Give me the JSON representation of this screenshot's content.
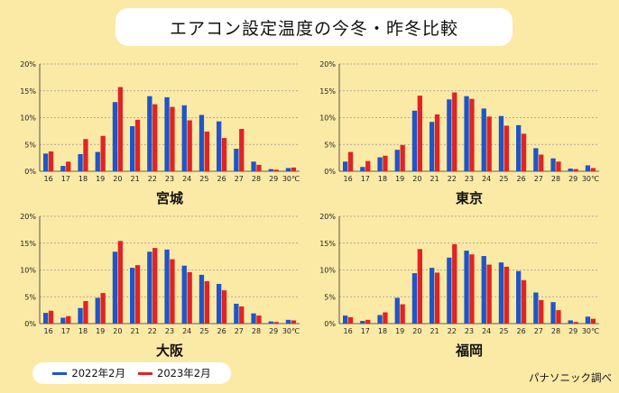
{
  "title": "エアコン設定温度の今冬・昨冬比較",
  "source": "パナソニック調べ",
  "colors": {
    "s2022": "#1f55c8",
    "s2023": "#e02424",
    "background": "#fbe9a6",
    "axis": "#333333",
    "grid": "#999999"
  },
  "chart_data": [
    {
      "type": "bar",
      "title": "宮城",
      "categories": [
        "16",
        "17",
        "18",
        "19",
        "20",
        "21",
        "22",
        "23",
        "24",
        "25",
        "26",
        "27",
        "28",
        "29",
        "30℃"
      ],
      "yticks": [
        "0%",
        "5%",
        "10%",
        "15%",
        "20%"
      ],
      "ylim": [
        0,
        20
      ],
      "series": [
        {
          "name": "2022年2月",
          "values": [
            3.3,
            1.0,
            3.2,
            3.6,
            12.9,
            8.4,
            14.0,
            13.8,
            12.3,
            10.5,
            9.3,
            4.2,
            1.8,
            0.4,
            0.6
          ]
        },
        {
          "name": "2023年2月",
          "values": [
            3.7,
            1.8,
            6.0,
            6.6,
            15.7,
            9.6,
            12.5,
            12.0,
            9.5,
            7.4,
            6.2,
            7.9,
            1.2,
            0.3,
            0.7
          ]
        }
      ]
    },
    {
      "type": "bar",
      "title": "東京",
      "categories": [
        "16",
        "17",
        "18",
        "19",
        "20",
        "21",
        "22",
        "23",
        "24",
        "25",
        "26",
        "27",
        "28",
        "29",
        "30℃"
      ],
      "yticks": [
        "0%",
        "5%",
        "10%",
        "15%",
        "20%"
      ],
      "ylim": [
        0,
        20
      ],
      "series": [
        {
          "name": "2022年2月",
          "values": [
            1.8,
            0.8,
            2.6,
            4.0,
            11.3,
            9.2,
            13.4,
            14.0,
            11.7,
            10.3,
            8.6,
            4.3,
            2.4,
            0.5,
            1.1
          ]
        },
        {
          "name": "2023年2月",
          "values": [
            3.6,
            1.9,
            2.9,
            4.9,
            14.1,
            10.6,
            14.7,
            13.5,
            10.2,
            8.5,
            7.0,
            3.1,
            1.8,
            0.4,
            0.6
          ]
        }
      ]
    },
    {
      "type": "bar",
      "title": "大阪",
      "categories": [
        "16",
        "17",
        "18",
        "19",
        "20",
        "21",
        "22",
        "23",
        "24",
        "25",
        "26",
        "27",
        "28",
        "29",
        "30℃"
      ],
      "yticks": [
        "0%",
        "5%",
        "10%",
        "15%",
        "20%"
      ],
      "ylim": [
        0,
        20
      ],
      "series": [
        {
          "name": "2022年2月",
          "values": [
            2.0,
            1.1,
            2.9,
            4.8,
            13.4,
            10.4,
            13.4,
            13.8,
            10.8,
            9.1,
            7.4,
            3.7,
            1.9,
            0.4,
            0.7
          ]
        },
        {
          "name": "2023年2月",
          "values": [
            2.4,
            1.4,
            4.2,
            5.7,
            15.4,
            10.9,
            14.1,
            12.0,
            9.6,
            7.9,
            6.2,
            3.2,
            1.5,
            0.3,
            0.6
          ]
        }
      ]
    },
    {
      "type": "bar",
      "title": "福岡",
      "categories": [
        "16",
        "17",
        "18",
        "19",
        "20",
        "21",
        "22",
        "23",
        "24",
        "25",
        "26",
        "27",
        "28",
        "29",
        "30℃"
      ],
      "yticks": [
        "0%",
        "5%",
        "10%",
        "15%",
        "20%"
      ],
      "ylim": [
        0,
        20
      ],
      "series": [
        {
          "name": "2022年2月",
          "values": [
            1.5,
            0.5,
            1.6,
            4.8,
            9.4,
            10.4,
            12.3,
            13.6,
            12.6,
            11.4,
            9.8,
            5.8,
            4.0,
            0.6,
            1.3
          ]
        },
        {
          "name": "2023年2月",
          "values": [
            1.2,
            0.7,
            2.1,
            3.6,
            13.9,
            9.5,
            14.8,
            12.9,
            11.0,
            10.6,
            8.1,
            4.4,
            2.5,
            0.3,
            0.9
          ]
        }
      ]
    }
  ],
  "legend": [
    {
      "label": "2022年2月"
    },
    {
      "label": "2023年2月"
    }
  ]
}
